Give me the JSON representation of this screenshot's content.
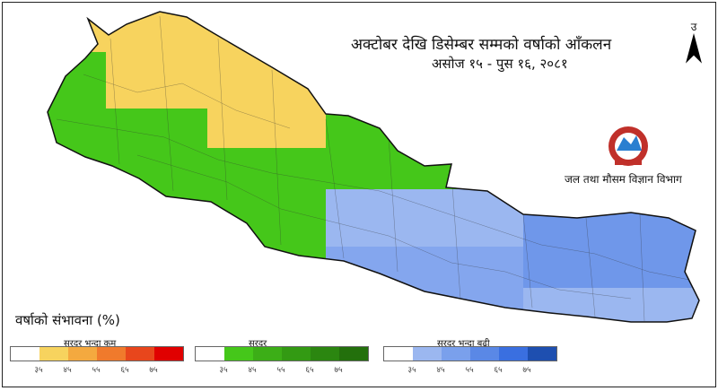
{
  "title": "अक्टोबर  देखि डिसेम्बर सम्मको वर्षाको आँकलन",
  "subtitle": "असोज १५ - पुस १६, २०८१",
  "north_label": "उ",
  "department": "जल तथा मौसम विज्ञान विभाग",
  "legend": {
    "title": "वर्षाको संभावना (%)",
    "groups": [
      {
        "label": "सरदर भन्दा कम",
        "colors": [
          "#ffffff",
          "#f7d35e",
          "#f4a93f",
          "#f07a2c",
          "#e8461c",
          "#e00000"
        ],
        "ticks": [
          "३५",
          "४५",
          "५५",
          "६५",
          "७५"
        ]
      },
      {
        "label": "सरदर",
        "colors": [
          "#ffffff",
          "#45c71a",
          "#3cae17",
          "#339a13",
          "#2b8610",
          "#23700c"
        ],
        "ticks": [
          "३५",
          "४५",
          "५५",
          "६५",
          "७५"
        ]
      },
      {
        "label": "सरदर भन्दा बढी",
        "colors": [
          "#ffffff",
          "#9bb7f0",
          "#7aa0ec",
          "#5a88e6",
          "#3a6fe0",
          "#1e4fb0"
        ],
        "ticks": [
          "३५",
          "४५",
          "५५",
          "६५",
          "७५"
        ]
      }
    ]
  },
  "map_colors": {
    "below_normal": "#f7d35e",
    "normal": "#45c71a",
    "above_normal_light": "#9bb7f0",
    "above_normal_medium": "#6f97ea"
  }
}
